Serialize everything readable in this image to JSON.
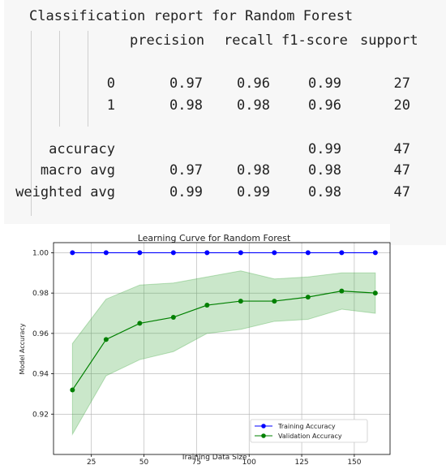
{
  "report": {
    "title": "Classification report for Random Forest",
    "headers": [
      "precision",
      "recall",
      "f1-score",
      "support"
    ],
    "rows": [
      {
        "label": "0",
        "precision": "0.97",
        "recall": "0.96",
        "f1": "0.99",
        "support": "27"
      },
      {
        "label": "1",
        "precision": "0.98",
        "recall": "0.98",
        "f1": "0.96",
        "support": "20"
      },
      {
        "label": "accuracy",
        "precision": "",
        "recall": "",
        "f1": "0.99",
        "support": "47"
      },
      {
        "label": "macro avg",
        "precision": "0.97",
        "recall": "0.98",
        "f1": "0.98",
        "support": "47"
      },
      {
        "label": "weighted avg",
        "precision": "0.99",
        "recall": "0.99",
        "f1": "0.98",
        "support": "47"
      }
    ]
  },
  "chart_data": {
    "type": "line",
    "title": "Learning Curve for Random Forest",
    "xlabel": "Training Data Size",
    "ylabel": "Model Accuracy",
    "xlim": [
      7,
      167
    ],
    "ylim": [
      0.9,
      1.005
    ],
    "xticks": [
      25,
      50,
      75,
      100,
      125,
      150
    ],
    "yticks": [
      0.92,
      0.94,
      0.96,
      0.98,
      1.0
    ],
    "ytick_labels": [
      "0.92",
      "0.94",
      "0.96",
      "0.98",
      "1.00"
    ],
    "grid": true,
    "legend_position": "lower-right",
    "x": [
      16,
      32,
      48,
      64,
      80,
      96,
      112,
      128,
      144,
      160
    ],
    "series": [
      {
        "name": "Training Accuracy",
        "color": "#0000ff",
        "values": [
          1.0,
          1.0,
          1.0,
          1.0,
          1.0,
          1.0,
          1.0,
          1.0,
          1.0,
          1.0
        ]
      },
      {
        "name": "Validation Accuracy",
        "color": "#008000",
        "band_color": "#2ca02c",
        "values": [
          0.932,
          0.957,
          0.965,
          0.968,
          0.974,
          0.976,
          0.976,
          0.978,
          0.981,
          0.98
        ],
        "upper": [
          0.955,
          0.977,
          0.984,
          0.985,
          0.988,
          0.991,
          0.987,
          0.988,
          0.99,
          0.99
        ],
        "lower": [
          0.91,
          0.939,
          0.947,
          0.951,
          0.96,
          0.962,
          0.966,
          0.967,
          0.972,
          0.97
        ]
      }
    ]
  }
}
